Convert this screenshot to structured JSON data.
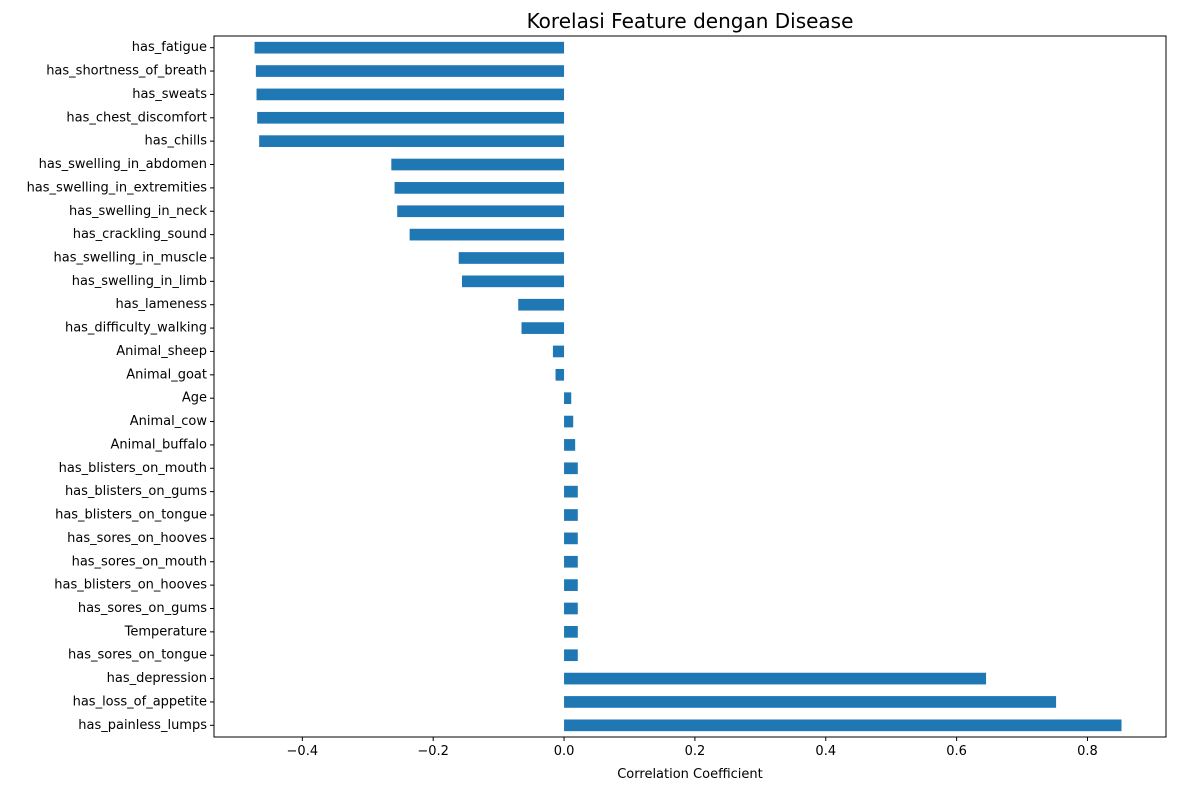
{
  "chart_data": {
    "type": "bar",
    "orientation": "horizontal",
    "title": "Korelasi Feature dengan Disease",
    "xlabel": "Correlation Coefficient",
    "ylabel": "",
    "xlim": [
      -0.535,
      0.92
    ],
    "xticks": [
      -0.4,
      -0.2,
      0.0,
      0.2,
      0.4,
      0.6,
      0.8
    ],
    "xtick_labels": [
      "−0.4",
      "−0.2",
      "0.0",
      "0.2",
      "0.4",
      "0.6",
      "0.8"
    ],
    "grid": false,
    "legend": "none",
    "bar_color": "#1f77b4",
    "categories": [
      "has_fatigue",
      "has_shortness_of_breath",
      "has_sweats",
      "has_chest_discomfort",
      "has_chills",
      "has_swelling_in_abdomen",
      "has_swelling_in_extremities",
      "has_swelling_in_neck",
      "has_crackling_sound",
      "has_swelling_in_muscle",
      "has_swelling_in_limb",
      "has_lameness",
      "has_difficulty_walking",
      "Animal_sheep",
      "Animal_goat",
      "Age",
      "Animal_cow",
      "Animal_buffalo",
      "has_blisters_on_mouth",
      "has_blisters_on_gums",
      "has_blisters_on_tongue",
      "has_sores_on_hooves",
      "has_sores_on_mouth",
      "has_blisters_on_hooves",
      "has_sores_on_gums",
      "Temperature",
      "has_sores_on_tongue",
      "has_depression",
      "has_loss_of_appetite",
      "has_painless_lumps"
    ],
    "values": [
      -0.473,
      -0.471,
      -0.47,
      -0.469,
      -0.466,
      -0.264,
      -0.259,
      -0.255,
      -0.236,
      -0.161,
      -0.156,
      -0.07,
      -0.065,
      -0.017,
      -0.013,
      0.011,
      0.014,
      0.017,
      0.021,
      0.021,
      0.021,
      0.021,
      0.021,
      0.021,
      0.021,
      0.021,
      0.021,
      0.645,
      0.752,
      0.852
    ]
  }
}
